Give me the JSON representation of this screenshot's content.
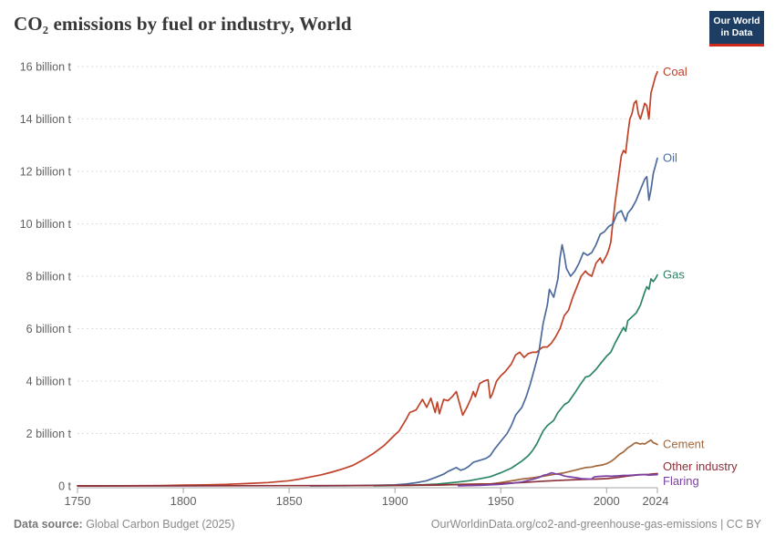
{
  "header": {
    "title": "CO₂ emissions by fuel or industry, World"
  },
  "logo": {
    "line1": "Our World",
    "line2": "in Data",
    "bg_color": "#1d3d63",
    "bar_color": "#cc2a1c"
  },
  "footer": {
    "source_label": "Data source:",
    "source_value": " Global Carbon Budget (2025)",
    "credit": "OurWorldinData.org/co2-and-greenhouse-gas-emissions | CC BY"
  },
  "chart_data": {
    "type": "line",
    "title": "CO₂ emissions by fuel or industry, World",
    "unit": "billion t",
    "xlabel": "",
    "ylabel": "",
    "xlim": [
      1750,
      2024
    ],
    "ylim": [
      0,
      16
    ],
    "grid": "dashed-horizontal",
    "legend_position": "right-end-labels",
    "x_ticks": [
      1750,
      1800,
      1850,
      1900,
      1950,
      2000,
      2024
    ],
    "y_ticks": [
      {
        "v": 0,
        "label": "0 t"
      },
      {
        "v": 2,
        "label": "2 billion t"
      },
      {
        "v": 4,
        "label": "4 billion t"
      },
      {
        "v": 6,
        "label": "6 billion t"
      },
      {
        "v": 8,
        "label": "8 billion t"
      },
      {
        "v": 10,
        "label": "10 billion t"
      },
      {
        "v": 12,
        "label": "12 billion t"
      },
      {
        "v": 14,
        "label": "14 billion t"
      },
      {
        "v": 16,
        "label": "16 billion t"
      }
    ],
    "series": [
      {
        "name": "Coal",
        "slug": "coal",
        "color": "#c04128",
        "points": [
          [
            1750,
            0.003
          ],
          [
            1760,
            0.005
          ],
          [
            1770,
            0.007
          ],
          [
            1780,
            0.01
          ],
          [
            1790,
            0.015
          ],
          [
            1800,
            0.03
          ],
          [
            1810,
            0.04
          ],
          [
            1820,
            0.06
          ],
          [
            1830,
            0.09
          ],
          [
            1840,
            0.13
          ],
          [
            1850,
            0.2
          ],
          [
            1855,
            0.26
          ],
          [
            1860,
            0.34
          ],
          [
            1865,
            0.42
          ],
          [
            1870,
            0.52
          ],
          [
            1875,
            0.64
          ],
          [
            1880,
            0.78
          ],
          [
            1885,
            1.0
          ],
          [
            1890,
            1.25
          ],
          [
            1895,
            1.55
          ],
          [
            1900,
            1.95
          ],
          [
            1902,
            2.1
          ],
          [
            1905,
            2.5
          ],
          [
            1907,
            2.8
          ],
          [
            1910,
            2.9
          ],
          [
            1913,
            3.3
          ],
          [
            1915,
            3.0
          ],
          [
            1917,
            3.35
          ],
          [
            1919,
            2.8
          ],
          [
            1920,
            3.2
          ],
          [
            1921,
            2.75
          ],
          [
            1923,
            3.3
          ],
          [
            1925,
            3.25
          ],
          [
            1927,
            3.4
          ],
          [
            1929,
            3.6
          ],
          [
            1930,
            3.3
          ],
          [
            1932,
            2.7
          ],
          [
            1934,
            3.0
          ],
          [
            1936,
            3.35
          ],
          [
            1937,
            3.6
          ],
          [
            1938,
            3.4
          ],
          [
            1940,
            3.9
          ],
          [
            1942,
            4.0
          ],
          [
            1944,
            4.05
          ],
          [
            1945,
            3.35
          ],
          [
            1946,
            3.5
          ],
          [
            1948,
            4.0
          ],
          [
            1950,
            4.2
          ],
          [
            1952,
            4.35
          ],
          [
            1955,
            4.65
          ],
          [
            1957,
            5.0
          ],
          [
            1959,
            5.1
          ],
          [
            1961,
            4.9
          ],
          [
            1963,
            5.05
          ],
          [
            1965,
            5.1
          ],
          [
            1967,
            5.1
          ],
          [
            1969,
            5.25
          ],
          [
            1970,
            5.3
          ],
          [
            1972,
            5.3
          ],
          [
            1974,
            5.45
          ],
          [
            1976,
            5.7
          ],
          [
            1978,
            6.0
          ],
          [
            1980,
            6.5
          ],
          [
            1982,
            6.7
          ],
          [
            1984,
            7.2
          ],
          [
            1986,
            7.6
          ],
          [
            1988,
            8.0
          ],
          [
            1990,
            8.2
          ],
          [
            1991,
            8.1
          ],
          [
            1993,
            8.0
          ],
          [
            1995,
            8.5
          ],
          [
            1997,
            8.7
          ],
          [
            1998,
            8.5
          ],
          [
            2000,
            8.8
          ],
          [
            2001,
            9.0
          ],
          [
            2002,
            9.3
          ],
          [
            2003,
            10.1
          ],
          [
            2004,
            10.8
          ],
          [
            2005,
            11.4
          ],
          [
            2006,
            12.0
          ],
          [
            2007,
            12.6
          ],
          [
            2008,
            12.8
          ],
          [
            2009,
            12.7
          ],
          [
            2010,
            13.4
          ],
          [
            2011,
            14.0
          ],
          [
            2012,
            14.2
          ],
          [
            2013,
            14.6
          ],
          [
            2014,
            14.7
          ],
          [
            2015,
            14.2
          ],
          [
            2016,
            14.0
          ],
          [
            2017,
            14.3
          ],
          [
            2018,
            14.6
          ],
          [
            2019,
            14.5
          ],
          [
            2020,
            14.0
          ],
          [
            2021,
            15.0
          ],
          [
            2022,
            15.3
          ],
          [
            2023,
            15.6
          ],
          [
            2024,
            15.8
          ]
        ]
      },
      {
        "name": "Oil",
        "slug": "oil",
        "color": "#4c6a9c",
        "points": [
          [
            1860,
            0.001
          ],
          [
            1880,
            0.01
          ],
          [
            1890,
            0.02
          ],
          [
            1900,
            0.04
          ],
          [
            1905,
            0.07
          ],
          [
            1910,
            0.12
          ],
          [
            1915,
            0.2
          ],
          [
            1920,
            0.35
          ],
          [
            1923,
            0.45
          ],
          [
            1925,
            0.55
          ],
          [
            1929,
            0.7
          ],
          [
            1931,
            0.6
          ],
          [
            1933,
            0.65
          ],
          [
            1935,
            0.75
          ],
          [
            1937,
            0.9
          ],
          [
            1939,
            0.95
          ],
          [
            1941,
            1.0
          ],
          [
            1943,
            1.05
          ],
          [
            1945,
            1.15
          ],
          [
            1947,
            1.4
          ],
          [
            1950,
            1.7
          ],
          [
            1953,
            2.0
          ],
          [
            1955,
            2.3
          ],
          [
            1957,
            2.7
          ],
          [
            1960,
            3.0
          ],
          [
            1962,
            3.4
          ],
          [
            1964,
            3.9
          ],
          [
            1966,
            4.5
          ],
          [
            1968,
            5.1
          ],
          [
            1970,
            6.2
          ],
          [
            1972,
            6.9
          ],
          [
            1973,
            7.5
          ],
          [
            1975,
            7.2
          ],
          [
            1977,
            7.9
          ],
          [
            1978,
            8.7
          ],
          [
            1979,
            9.2
          ],
          [
            1980,
            8.8
          ],
          [
            1981,
            8.3
          ],
          [
            1983,
            8.0
          ],
          [
            1985,
            8.2
          ],
          [
            1987,
            8.5
          ],
          [
            1989,
            8.9
          ],
          [
            1991,
            8.8
          ],
          [
            1993,
            8.9
          ],
          [
            1995,
            9.2
          ],
          [
            1997,
            9.6
          ],
          [
            1999,
            9.7
          ],
          [
            2001,
            9.9
          ],
          [
            2003,
            10.0
          ],
          [
            2005,
            10.4
          ],
          [
            2007,
            10.5
          ],
          [
            2008,
            10.3
          ],
          [
            2009,
            10.1
          ],
          [
            2010,
            10.4
          ],
          [
            2012,
            10.6
          ],
          [
            2014,
            10.9
          ],
          [
            2016,
            11.3
          ],
          [
            2018,
            11.7
          ],
          [
            2019,
            11.8
          ],
          [
            2020,
            10.9
          ],
          [
            2021,
            11.3
          ],
          [
            2022,
            11.9
          ],
          [
            2023,
            12.2
          ],
          [
            2024,
            12.5
          ]
        ]
      },
      {
        "name": "Gas",
        "slug": "gas",
        "color": "#2c8465",
        "points": [
          [
            1890,
            0.003
          ],
          [
            1900,
            0.01
          ],
          [
            1910,
            0.03
          ],
          [
            1920,
            0.07
          ],
          [
            1930,
            0.15
          ],
          [
            1935,
            0.2
          ],
          [
            1940,
            0.27
          ],
          [
            1945,
            0.35
          ],
          [
            1950,
            0.5
          ],
          [
            1955,
            0.68
          ],
          [
            1960,
            0.95
          ],
          [
            1963,
            1.15
          ],
          [
            1965,
            1.35
          ],
          [
            1967,
            1.6
          ],
          [
            1970,
            2.1
          ],
          [
            1972,
            2.3
          ],
          [
            1975,
            2.5
          ],
          [
            1977,
            2.8
          ],
          [
            1980,
            3.1
          ],
          [
            1982,
            3.2
          ],
          [
            1985,
            3.55
          ],
          [
            1987,
            3.8
          ],
          [
            1990,
            4.15
          ],
          [
            1992,
            4.2
          ],
          [
            1995,
            4.45
          ],
          [
            1997,
            4.65
          ],
          [
            2000,
            4.95
          ],
          [
            2002,
            5.1
          ],
          [
            2004,
            5.45
          ],
          [
            2006,
            5.75
          ],
          [
            2008,
            6.05
          ],
          [
            2009,
            5.9
          ],
          [
            2010,
            6.3
          ],
          [
            2012,
            6.45
          ],
          [
            2014,
            6.6
          ],
          [
            2016,
            6.9
          ],
          [
            2018,
            7.4
          ],
          [
            2019,
            7.6
          ],
          [
            2020,
            7.5
          ],
          [
            2021,
            7.9
          ],
          [
            2022,
            7.8
          ],
          [
            2023,
            7.9
          ],
          [
            2024,
            8.05
          ]
        ]
      },
      {
        "name": "Cement",
        "slug": "cement",
        "color": "#a2683c",
        "points": [
          [
            1900,
            0.01
          ],
          [
            1920,
            0.03
          ],
          [
            1930,
            0.06
          ],
          [
            1940,
            0.08
          ],
          [
            1945,
            0.07
          ],
          [
            1950,
            0.13
          ],
          [
            1955,
            0.19
          ],
          [
            1960,
            0.26
          ],
          [
            1965,
            0.31
          ],
          [
            1970,
            0.37
          ],
          [
            1975,
            0.44
          ],
          [
            1980,
            0.5
          ],
          [
            1985,
            0.6
          ],
          [
            1990,
            0.7
          ],
          [
            1993,
            0.72
          ],
          [
            1995,
            0.76
          ],
          [
            1998,
            0.8
          ],
          [
            2000,
            0.85
          ],
          [
            2002,
            0.93
          ],
          [
            2004,
            1.05
          ],
          [
            2006,
            1.2
          ],
          [
            2008,
            1.3
          ],
          [
            2010,
            1.45
          ],
          [
            2012,
            1.55
          ],
          [
            2013,
            1.62
          ],
          [
            2014,
            1.65
          ],
          [
            2015,
            1.62
          ],
          [
            2016,
            1.6
          ],
          [
            2017,
            1.62
          ],
          [
            2018,
            1.6
          ],
          [
            2019,
            1.65
          ],
          [
            2020,
            1.7
          ],
          [
            2021,
            1.75
          ],
          [
            2022,
            1.65
          ],
          [
            2023,
            1.62
          ],
          [
            2024,
            1.58
          ]
        ]
      },
      {
        "name": "Other industry",
        "slug": "other-industry",
        "color": "#8c3039",
        "points": [
          [
            1750,
            0.0
          ],
          [
            1800,
            0.003
          ],
          [
            1850,
            0.01
          ],
          [
            1880,
            0.015
          ],
          [
            1900,
            0.02
          ],
          [
            1920,
            0.04
          ],
          [
            1940,
            0.06
          ],
          [
            1950,
            0.09
          ],
          [
            1960,
            0.13
          ],
          [
            1970,
            0.18
          ],
          [
            1980,
            0.22
          ],
          [
            1990,
            0.25
          ],
          [
            1995,
            0.26
          ],
          [
            2000,
            0.28
          ],
          [
            2005,
            0.32
          ],
          [
            2010,
            0.38
          ],
          [
            2015,
            0.42
          ],
          [
            2018,
            0.43
          ],
          [
            2020,
            0.44
          ],
          [
            2022,
            0.46
          ],
          [
            2024,
            0.47
          ]
        ]
      },
      {
        "name": "Flaring",
        "slug": "flaring",
        "color": "#7c41a4",
        "points": [
          [
            1930,
            0.005
          ],
          [
            1940,
            0.02
          ],
          [
            1950,
            0.06
          ],
          [
            1955,
            0.1
          ],
          [
            1960,
            0.15
          ],
          [
            1965,
            0.25
          ],
          [
            1968,
            0.32
          ],
          [
            1970,
            0.4
          ],
          [
            1972,
            0.44
          ],
          [
            1974,
            0.5
          ],
          [
            1976,
            0.46
          ],
          [
            1978,
            0.44
          ],
          [
            1980,
            0.38
          ],
          [
            1982,
            0.35
          ],
          [
            1984,
            0.33
          ],
          [
            1986,
            0.31
          ],
          [
            1988,
            0.28
          ],
          [
            1990,
            0.27
          ],
          [
            1992,
            0.26
          ],
          [
            1993,
            0.26
          ],
          [
            1994,
            0.34
          ],
          [
            1996,
            0.36
          ],
          [
            1998,
            0.37
          ],
          [
            2000,
            0.38
          ],
          [
            2002,
            0.37
          ],
          [
            2004,
            0.38
          ],
          [
            2006,
            0.39
          ],
          [
            2008,
            0.4
          ],
          [
            2010,
            0.4
          ],
          [
            2012,
            0.41
          ],
          [
            2014,
            0.42
          ],
          [
            2016,
            0.43
          ],
          [
            2018,
            0.43
          ],
          [
            2020,
            0.41
          ],
          [
            2022,
            0.42
          ],
          [
            2024,
            0.43
          ]
        ]
      }
    ]
  }
}
